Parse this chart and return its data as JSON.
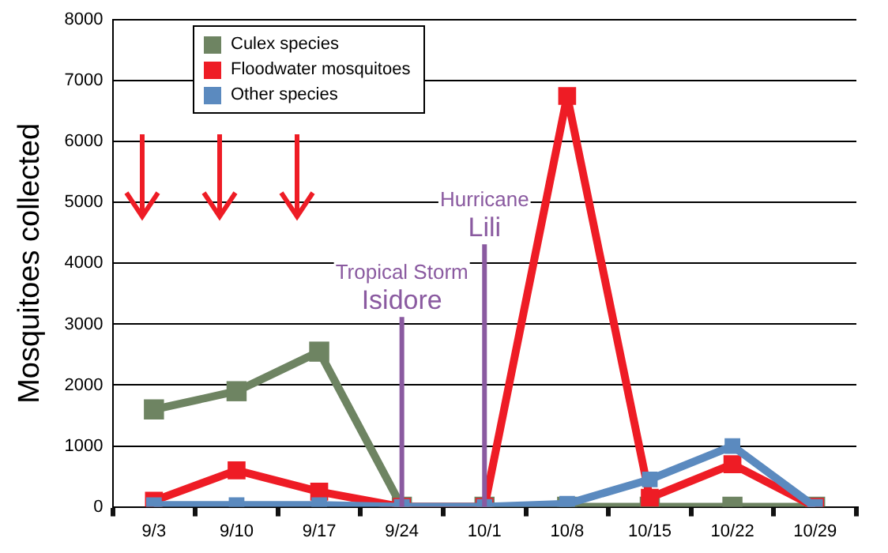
{
  "chart_data": {
    "type": "line",
    "ylabel": "Mosquitoes collected",
    "categories": [
      "9/3",
      "9/10",
      "9/17",
      "9/24",
      "10/1",
      "10/8",
      "10/15",
      "10/22",
      "10/29"
    ],
    "series": [
      {
        "name": "Culex species",
        "color": "#6e8462",
        "values": [
          1600,
          1900,
          2550,
          0,
          0,
          0,
          0,
          0,
          0
        ]
      },
      {
        "name": "Floodwater mosquitoes",
        "color": "#ee1c25",
        "values": [
          100,
          600,
          250,
          0,
          0,
          6750,
          150,
          700,
          0
        ]
      },
      {
        "name": "Other species",
        "color": "#5b8abf",
        "values": [
          30,
          30,
          30,
          0,
          0,
          50,
          450,
          1000,
          0
        ]
      }
    ],
    "ylim": [
      0,
      8000
    ],
    "yticks": [
      0,
      1000,
      2000,
      3000,
      4000,
      5000,
      6000,
      7000,
      8000
    ],
    "grid": "y",
    "legend": "top left",
    "marker": "square",
    "line_style": "solid",
    "ref_lines": [
      {
        "axis": "x",
        "value": "9/24",
        "label": "Tropical Storm Isidore",
        "color": "#8a5aa0"
      },
      {
        "axis": "x",
        "value": "10/1",
        "label": "Hurricane Lili",
        "color": "#8a5aa0"
      }
    ]
  }
}
